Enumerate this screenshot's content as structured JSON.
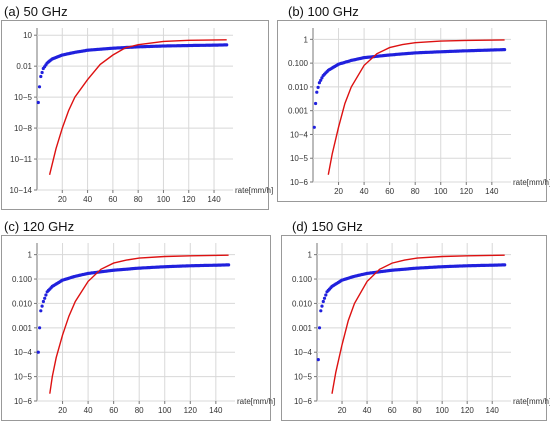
{
  "panels": [
    {
      "title": "(a)  50 GHz",
      "chart_data": {
        "type": "line",
        "xlabel": "rate[mm/h]",
        "x_ticks": [
          "20",
          "40",
          "60",
          "80",
          "100",
          "120",
          "140"
        ],
        "y_scale": "log",
        "y_tick_labels": [
          "10",
          "0.01",
          "10−5",
          "10−8",
          "10−11",
          "10−14"
        ],
        "y_tick_values": [
          10,
          0.01,
          1e-05,
          1e-08,
          1e-11,
          1e-14
        ],
        "xlim": [
          0,
          155
        ],
        "ylim": [
          1e-14,
          50
        ],
        "grid": true,
        "series": [
          {
            "color": "#2020dd",
            "style": "dots",
            "x": [
              1,
              2,
              3,
              5,
              8,
              12,
              20,
              30,
              40,
              60,
              80,
              100,
              120,
              150
            ],
            "y": [
              3e-06,
              0.0001,
              0.001,
              0.006,
              0.02,
              0.05,
              0.12,
              0.22,
              0.35,
              0.55,
              0.75,
              0.9,
              1.0,
              1.15
            ]
          },
          {
            "color": "#dd1111",
            "style": "line",
            "x": [
              10,
              15,
              20,
              25,
              30,
              40,
              50,
              60,
              70,
              80,
              100,
              120,
              150
            ],
            "y": [
              3e-13,
              1e-10,
              1e-08,
              5e-07,
              1e-05,
              0.0005,
              0.015,
              0.12,
              0.6,
              1.2,
              2.5,
              3.2,
              3.6
            ]
          }
        ]
      }
    },
    {
      "title": "(b)  100 GHz",
      "chart_data": {
        "type": "line",
        "xlabel": "rate[mm/h]",
        "x_ticks": [
          "20",
          "40",
          "60",
          "80",
          "100",
          "120",
          "140"
        ],
        "y_scale": "log",
        "y_tick_labels": [
          "1",
          "0.100",
          "0.010",
          "0.001",
          "10−4",
          "10−5",
          "10−6"
        ],
        "y_tick_values": [
          1,
          0.1,
          0.01,
          0.001,
          0.0001,
          1e-05,
          1e-06
        ],
        "xlim": [
          0,
          155
        ],
        "ylim": [
          1e-06,
          3
        ],
        "grid": true,
        "series": [
          {
            "color": "#2020dd",
            "style": "dots",
            "x": [
              1,
              2,
              3,
              5,
              8,
              12,
              20,
              30,
              40,
              60,
              80,
              100,
              120,
              150
            ],
            "y": [
              0.0002,
              0.002,
              0.006,
              0.015,
              0.03,
              0.05,
              0.09,
              0.13,
              0.17,
              0.22,
              0.27,
              0.3,
              0.33,
              0.37
            ]
          },
          {
            "color": "#dd1111",
            "style": "line",
            "x": [
              12,
              15,
              20,
              25,
              30,
              40,
              50,
              60,
              70,
              80,
              100,
              120,
              150
            ],
            "y": [
              2e-06,
              1.5e-05,
              0.0002,
              0.002,
              0.01,
              0.08,
              0.25,
              0.45,
              0.6,
              0.72,
              0.84,
              0.9,
              0.95
            ]
          }
        ]
      }
    },
    {
      "title": "(c)  120 GHz",
      "chart_data": {
        "type": "line",
        "xlabel": "rate[mm/h]",
        "x_ticks": [
          "20",
          "40",
          "60",
          "80",
          "100",
          "120",
          "140"
        ],
        "y_scale": "log",
        "y_tick_labels": [
          "1",
          "0.100",
          "0.010",
          "0.001",
          "10−4",
          "10−5",
          "10−6"
        ],
        "y_tick_values": [
          1,
          0.1,
          0.01,
          0.001,
          0.0001,
          1e-05,
          1e-06
        ],
        "xlim": [
          0,
          155
        ],
        "ylim": [
          1e-06,
          3
        ],
        "grid": true,
        "series": [
          {
            "color": "#2020dd",
            "style": "dots",
            "x": [
              1,
              2,
              3,
              5,
              8,
              12,
              20,
              30,
              40,
              60,
              80,
              100,
              120,
              150
            ],
            "y": [
              0.0001,
              0.001,
              0.005,
              0.012,
              0.03,
              0.05,
              0.09,
              0.13,
              0.17,
              0.23,
              0.28,
              0.32,
              0.35,
              0.38
            ]
          },
          {
            "color": "#dd1111",
            "style": "line",
            "x": [
              10,
              12,
              15,
              20,
              25,
              30,
              40,
              50,
              60,
              70,
              80,
              100,
              120,
              150
            ],
            "y": [
              2e-06,
              1e-05,
              6e-05,
              0.0005,
              0.003,
              0.012,
              0.08,
              0.25,
              0.45,
              0.6,
              0.72,
              0.84,
              0.9,
              0.95
            ]
          }
        ]
      }
    },
    {
      "title": "(d)  150 GHz",
      "chart_data": {
        "type": "line",
        "xlabel": "rate[mm/h]",
        "x_ticks": [
          "20",
          "40",
          "60",
          "80",
          "100",
          "120",
          "140"
        ],
        "y_scale": "log",
        "y_tick_labels": [
          "1",
          "0.100",
          "0.010",
          "0.001",
          "10−4",
          "10−5",
          "10−6"
        ],
        "y_tick_values": [
          1,
          0.1,
          0.01,
          0.001,
          0.0001,
          1e-05,
          1e-06
        ],
        "xlim": [
          0,
          155
        ],
        "ylim": [
          1e-06,
          3
        ],
        "grid": true,
        "series": [
          {
            "color": "#2020dd",
            "style": "dots",
            "x": [
              1,
              2,
              3,
              5,
              8,
              12,
              20,
              30,
              40,
              60,
              80,
              100,
              120,
              150
            ],
            "y": [
              5e-05,
              0.001,
              0.005,
              0.012,
              0.03,
              0.05,
              0.09,
              0.13,
              0.17,
              0.23,
              0.28,
              0.32,
              0.35,
              0.38
            ]
          },
          {
            "color": "#dd1111",
            "style": "line",
            "x": [
              12,
              15,
              20,
              25,
              30,
              40,
              50,
              60,
              70,
              80,
              100,
              120,
              150
            ],
            "y": [
              2e-06,
              1.5e-05,
              0.0002,
              0.002,
              0.01,
              0.08,
              0.25,
              0.45,
              0.6,
              0.72,
              0.84,
              0.9,
              0.95
            ]
          }
        ]
      }
    }
  ]
}
